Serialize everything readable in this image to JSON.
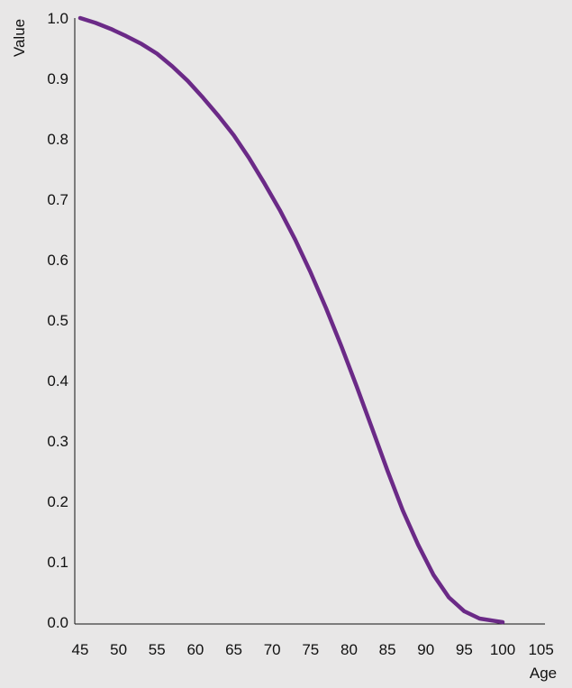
{
  "chart_data": {
    "type": "line",
    "title": "",
    "xlabel": "Age",
    "ylabel": "Value",
    "xlim": [
      45,
      105
    ],
    "ylim": [
      0.0,
      1.0
    ],
    "x_ticks": [
      45,
      50,
      55,
      60,
      65,
      70,
      75,
      80,
      85,
      90,
      95,
      100,
      105
    ],
    "y_ticks": [
      "0.0",
      "0.1",
      "0.2",
      "0.3",
      "0.4",
      "0.5",
      "0.6",
      "0.7",
      "0.8",
      "0.9",
      "1.0"
    ],
    "grid": false,
    "legend": "none",
    "series": [
      {
        "color": "#6b2a87",
        "x": [
          45,
          47,
          49,
          51,
          53,
          55,
          57,
          59,
          61,
          63,
          65,
          67,
          69,
          71,
          73,
          75,
          77,
          79,
          81,
          83,
          85,
          87,
          89,
          91,
          93,
          95,
          97,
          99,
          100
        ],
        "y": [
          1.0,
          0.992,
          0.982,
          0.97,
          0.957,
          0.941,
          0.92,
          0.896,
          0.868,
          0.838,
          0.806,
          0.768,
          0.726,
          0.682,
          0.633,
          0.579,
          0.52,
          0.457,
          0.39,
          0.321,
          0.251,
          0.185,
          0.128,
          0.078,
          0.041,
          0.018,
          0.006,
          0.002,
          0.0
        ]
      }
    ]
  }
}
